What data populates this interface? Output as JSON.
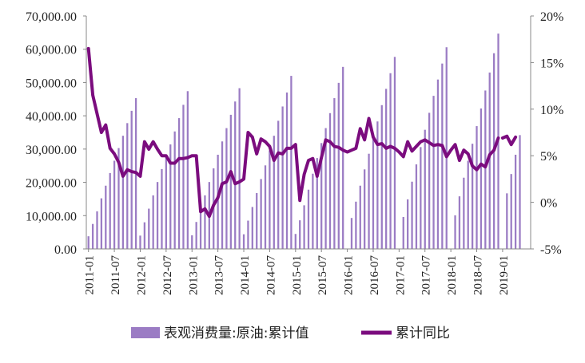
{
  "chart_data": {
    "type": "bar+line",
    "y_left": {
      "ticks": [
        "0.00",
        "10,000.00",
        "20,000.00",
        "30,000.00",
        "40,000.00",
        "50,000.00",
        "60,000.00",
        "70,000.00"
      ],
      "range": [
        0,
        70000
      ]
    },
    "y_right": {
      "ticks": [
        "-5%",
        "0%",
        "5%",
        "10%",
        "15%",
        "20%"
      ],
      "range": [
        -5,
        20
      ]
    },
    "x_labels": [
      "2011-01",
      "2011-07",
      "2012-01",
      "2012-07",
      "2013-01",
      "2013-07",
      "2014-01",
      "2014-07",
      "2015-01",
      "2015-07",
      "2016-01",
      "2016-07",
      "2017-01",
      "2017-07",
      "2018-01",
      "2018-07",
      "2019-01"
    ],
    "legend": {
      "bars": "表观消费量:原油:累计值",
      "line": "累计同比"
    },
    "colors": {
      "bars": "#9B7CC4",
      "line": "#7B0C7E"
    },
    "bars": {
      "name": "表观消费量:原油:累计值",
      "series": [
        {
          "start": "2011-01",
          "values": [
            3800,
            7500,
            11300,
            15200,
            19000,
            22800,
            26500,
            30300,
            34000,
            37800,
            41500,
            45300
          ]
        },
        {
          "start": "2012-01",
          "values": [
            4000,
            8000,
            12100,
            16100,
            20100,
            24000,
            27600,
            31400,
            35300,
            39300,
            43300,
            47400
          ]
        },
        {
          "start": "2013-01",
          "values": [
            4100,
            8100,
            12100,
            16100,
            20100,
            24200,
            28300,
            32300,
            36300,
            40300,
            44300,
            48300
          ]
        },
        {
          "start": "2014-01",
          "values": [
            4400,
            8500,
            12600,
            16800,
            21000,
            25100,
            29600,
            34000,
            38500,
            42800,
            47000,
            52000
          ]
        },
        {
          "start": "2015-01",
          "values": [
            4500,
            8600,
            13100,
            17800,
            22600,
            27300,
            31800,
            36300,
            40800,
            45300,
            49900,
            54700
          ]
        },
        {
          "start": "2016-01",
          "values": null
        },
        {
          "start": "2016-02",
          "values": [
            9300,
            14200,
            19000,
            23900,
            28600,
            33500,
            38300,
            43200,
            48100,
            52800,
            57700
          ]
        },
        {
          "start": "2017-01",
          "values": null
        },
        {
          "start": "2017-02",
          "values": [
            9600,
            14900,
            20200,
            25400,
            30600,
            35800,
            40900,
            46000,
            50900,
            55700,
            60600
          ]
        },
        {
          "start": "2018-01",
          "values": null
        },
        {
          "start": "2018-02",
          "values": [
            10100,
            15800,
            21400,
            26500,
            31600,
            36900,
            42200,
            47600,
            53000,
            58800,
            64700
          ]
        },
        {
          "start": "2019-01",
          "values": null
        },
        {
          "start": "2019-02",
          "values": [
            16700,
            22500,
            28300,
            34200
          ]
        }
      ]
    },
    "line": {
      "name": "累计同比",
      "unit": "%",
      "segments": [
        {
          "start": "2011-01",
          "values": [
            16.5,
            11.5,
            9.5,
            7.5,
            8.3,
            5.8,
            5.2,
            4.3,
            2.8,
            3.5,
            3.3,
            3.2,
            2.8,
            6.5,
            5.7,
            6.5,
            5.7,
            5.0,
            5.0,
            4.2,
            4.2,
            4.7,
            4.7,
            4.8,
            5.0,
            5.0,
            -1.0,
            -0.7,
            -1.5,
            -0.3,
            0.5,
            2.0,
            2.2,
            3.3,
            2.0,
            2.2,
            2.5,
            7.5,
            7.0,
            5.2,
            6.8,
            6.5,
            6.0,
            4.5,
            5.3,
            5.2,
            5.8,
            5.8,
            6.2,
            0.2,
            3.0,
            4.5,
            4.7,
            2.8,
            4.8,
            6.7,
            6.5,
            6.0,
            5.9,
            5.6,
            5.4,
            5.6,
            5.8,
            7.9,
            6.7,
            9.0,
            7.0,
            6.2,
            6.3,
            5.8,
            6.0,
            5.8,
            5.4,
            4.9,
            6.5,
            5.5,
            6.0,
            6.5,
            6.7,
            6.4,
            6.1,
            6.2,
            6.1,
            4.9,
            5.6,
            6.2,
            4.5,
            5.6,
            5.2,
            3.9,
            3.5,
            4.1,
            3.8,
            5.1,
            5.6,
            6.9
          ]
        },
        {
          "start": "2019-01",
          "values": [
            6.9,
            7.1,
            6.2,
            7.0
          ]
        }
      ]
    }
  }
}
